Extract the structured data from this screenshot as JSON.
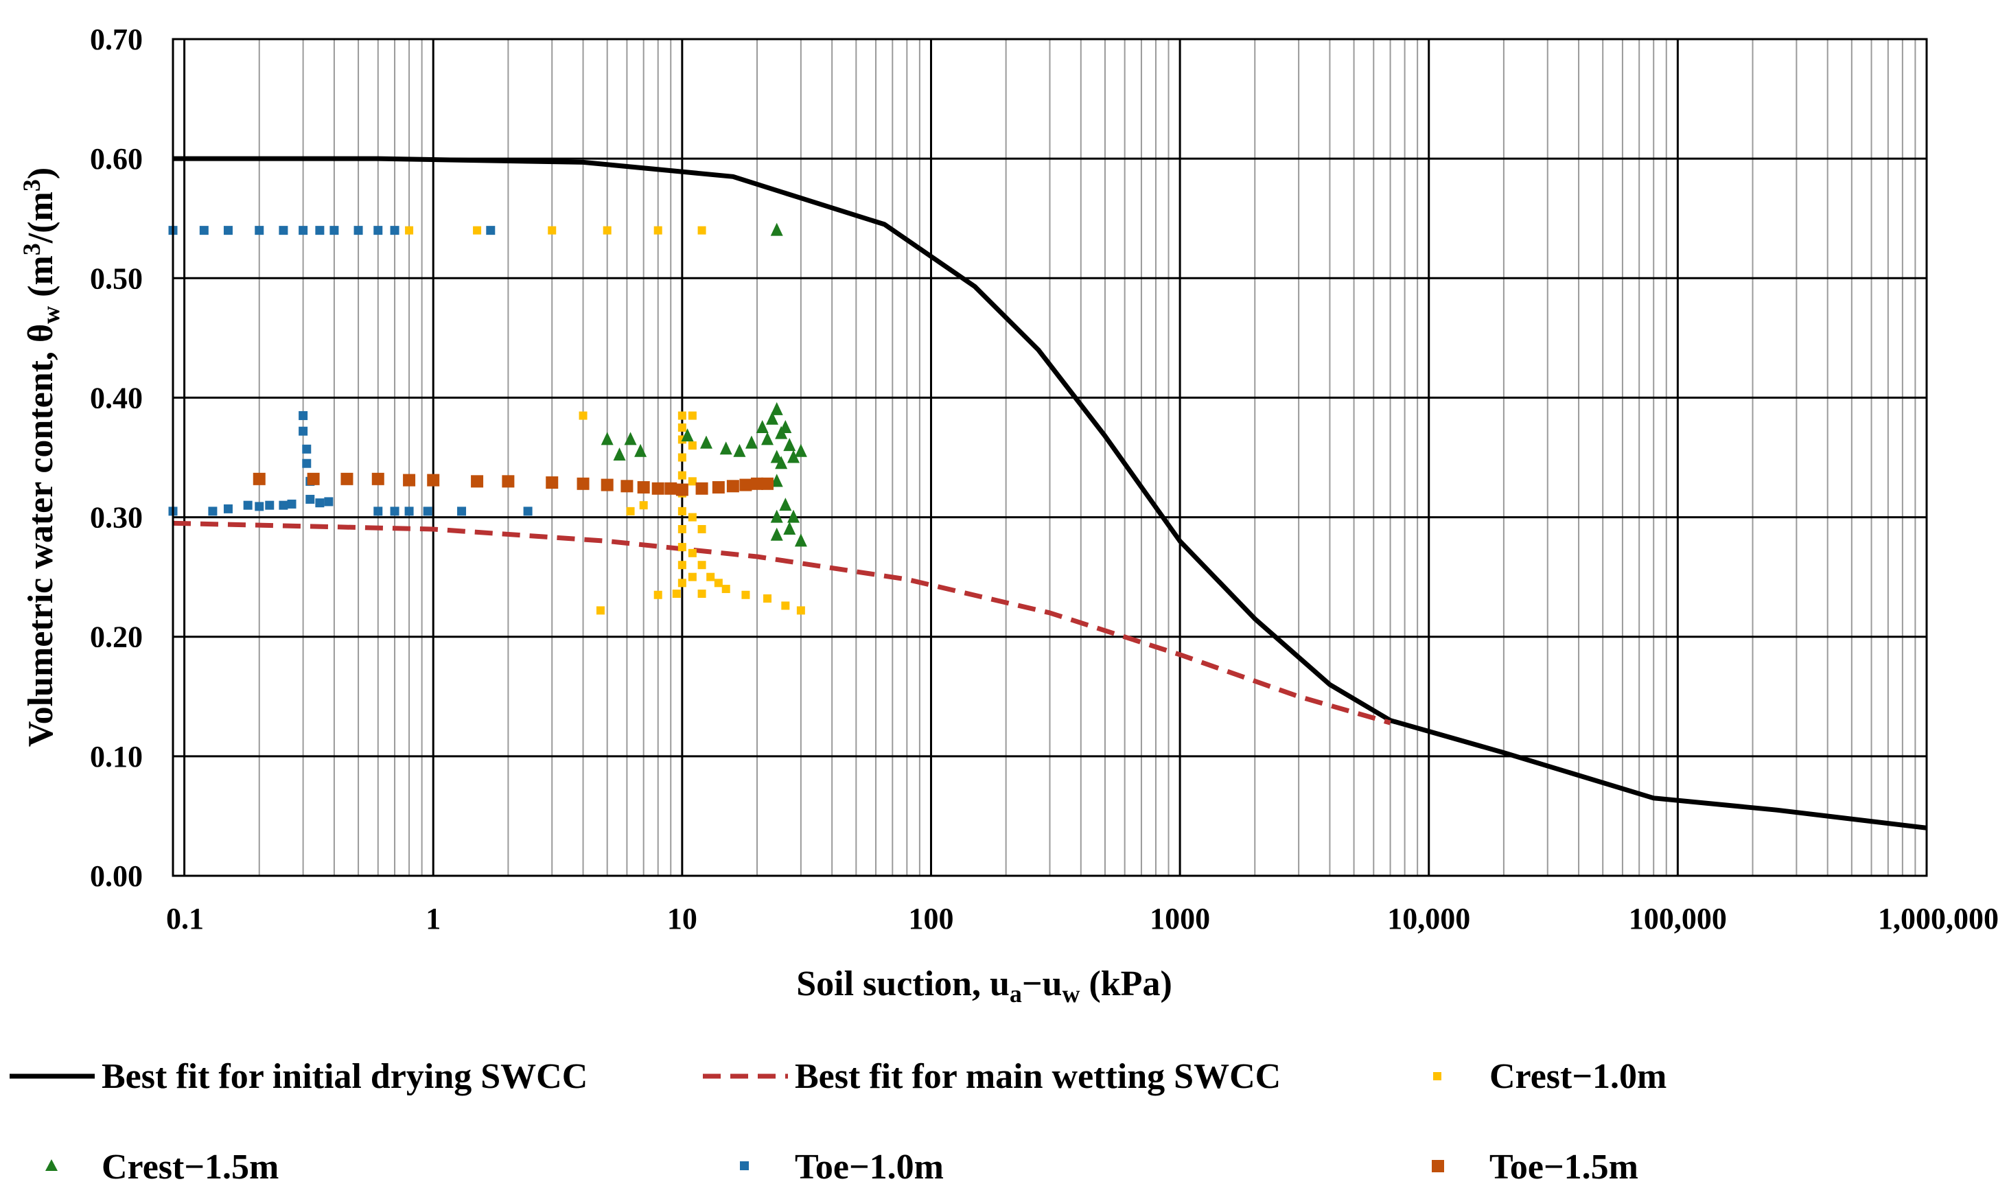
{
  "chart_data": {
    "type": "scatter",
    "title": "",
    "xlabel": "Soil suction, u",
    "xlabel_sub_a": "a",
    "xlabel_mid": "−u",
    "xlabel_sub_w": "w",
    "xlabel_units": " (kPa)",
    "ylabel_main": "Volumetric water content, θ",
    "ylabel_sub": "w",
    "ylabel_units_a": " (m",
    "ylabel_sup1": "3",
    "ylabel_units_b": "/(m",
    "ylabel_sup2": "3",
    "ylabel_units_c": ")",
    "xscale": "log",
    "xlim": [
      0.09,
      1000000
    ],
    "ylim": [
      0,
      0.7
    ],
    "grid": true,
    "legend_position": "bottom",
    "x_ticks": [
      {
        "value": 0.1,
        "label": "0.1"
      },
      {
        "value": 1,
        "label": "1"
      },
      {
        "value": 10,
        "label": "10"
      },
      {
        "value": 100,
        "label": "100"
      },
      {
        "value": 1000,
        "label": "1000"
      },
      {
        "value": 10000,
        "label": "10,000"
      },
      {
        "value": 100000,
        "label": "100,000"
      },
      {
        "value": 1000000,
        "label": "1,000,000"
      }
    ],
    "y_ticks": [
      {
        "value": 0.0,
        "label": "0.00"
      },
      {
        "value": 0.1,
        "label": "0.10"
      },
      {
        "value": 0.2,
        "label": "0.20"
      },
      {
        "value": 0.3,
        "label": "0.30"
      },
      {
        "value": 0.4,
        "label": "0.40"
      },
      {
        "value": 0.5,
        "label": "0.50"
      },
      {
        "value": 0.6,
        "label": "0.60"
      },
      {
        "value": 0.7,
        "label": "0.70"
      }
    ],
    "series": [
      {
        "name": "Best fit for initial drying SWCC",
        "kind": "line",
        "color": "#000000",
        "dash": "solid",
        "points": [
          [
            0.09,
            0.6
          ],
          [
            0.6,
            0.6
          ],
          [
            4,
            0.597
          ],
          [
            16,
            0.585
          ],
          [
            30,
            0.567
          ],
          [
            65,
            0.545
          ],
          [
            150,
            0.493
          ],
          [
            270,
            0.44
          ],
          [
            500,
            0.368
          ],
          [
            1000,
            0.28
          ],
          [
            2000,
            0.215
          ],
          [
            4000,
            0.16
          ],
          [
            7000,
            0.13
          ],
          [
            20000,
            0.103
          ],
          [
            80000,
            0.065
          ],
          [
            250000,
            0.055
          ],
          [
            1000000,
            0.04
          ]
        ]
      },
      {
        "name": "Best fit for main wetting SWCC",
        "kind": "line",
        "color": "#b83232",
        "dash": "dashed",
        "points": [
          [
            0.09,
            0.295
          ],
          [
            1,
            0.29
          ],
          [
            5,
            0.28
          ],
          [
            20,
            0.267
          ],
          [
            80,
            0.248
          ],
          [
            300,
            0.22
          ],
          [
            1000,
            0.185
          ],
          [
            3000,
            0.15
          ],
          [
            7000,
            0.128
          ]
        ]
      },
      {
        "name": "Crest−1.0m",
        "kind": "markers",
        "marker": "square",
        "color": "#ffc000",
        "points": [
          [
            0.8,
            0.54
          ],
          [
            1.5,
            0.54
          ],
          [
            3,
            0.54
          ],
          [
            5,
            0.54
          ],
          [
            8,
            0.54
          ],
          [
            12,
            0.54
          ],
          [
            4,
            0.385
          ],
          [
            4.7,
            0.222
          ],
          [
            6.2,
            0.305
          ],
          [
            7,
            0.31
          ],
          [
            8,
            0.235
          ],
          [
            10,
            0.385
          ],
          [
            10,
            0.375
          ],
          [
            10,
            0.365
          ],
          [
            10,
            0.35
          ],
          [
            10,
            0.335
          ],
          [
            10,
            0.32
          ],
          [
            10,
            0.305
          ],
          [
            10,
            0.29
          ],
          [
            10,
            0.275
          ],
          [
            10,
            0.26
          ],
          [
            10,
            0.245
          ],
          [
            11,
            0.385
          ],
          [
            11,
            0.36
          ],
          [
            11,
            0.33
          ],
          [
            11,
            0.3
          ],
          [
            11,
            0.27
          ],
          [
            11,
            0.25
          ],
          [
            12,
            0.29
          ],
          [
            12,
            0.26
          ],
          [
            13,
            0.25
          ],
          [
            15,
            0.24
          ],
          [
            18,
            0.235
          ],
          [
            22,
            0.232
          ],
          [
            26,
            0.226
          ],
          [
            30,
            0.222
          ],
          [
            9.5,
            0.236
          ],
          [
            12,
            0.236
          ],
          [
            14,
            0.245
          ]
        ]
      },
      {
        "name": "Crest−1.5m",
        "kind": "markers",
        "marker": "triangle",
        "color": "#1e7b1e",
        "points": [
          [
            5,
            0.365
          ],
          [
            5.6,
            0.352
          ],
          [
            6.2,
            0.365
          ],
          [
            6.8,
            0.355
          ],
          [
            10.5,
            0.368
          ],
          [
            12.5,
            0.362
          ],
          [
            15,
            0.357
          ],
          [
            17,
            0.355
          ],
          [
            19,
            0.362
          ],
          [
            21,
            0.375
          ],
          [
            22,
            0.365
          ],
          [
            23,
            0.382
          ],
          [
            24,
            0.54
          ],
          [
            24,
            0.39
          ],
          [
            24,
            0.35
          ],
          [
            24,
            0.33
          ],
          [
            24,
            0.3
          ],
          [
            24,
            0.285
          ],
          [
            25,
            0.37
          ],
          [
            25,
            0.345
          ],
          [
            26,
            0.375
          ],
          [
            26,
            0.31
          ],
          [
            27,
            0.36
          ],
          [
            27,
            0.29
          ],
          [
            28,
            0.35
          ],
          [
            28,
            0.3
          ],
          [
            30,
            0.355
          ],
          [
            30,
            0.28
          ]
        ]
      },
      {
        "name": "Toe−1.0m",
        "kind": "markers",
        "marker": "square",
        "color": "#1f6ea8",
        "points": [
          [
            0.09,
            0.54
          ],
          [
            0.12,
            0.54
          ],
          [
            0.15,
            0.54
          ],
          [
            0.2,
            0.54
          ],
          [
            0.25,
            0.54
          ],
          [
            0.3,
            0.54
          ],
          [
            0.35,
            0.54
          ],
          [
            0.4,
            0.54
          ],
          [
            0.5,
            0.54
          ],
          [
            0.6,
            0.54
          ],
          [
            0.7,
            0.54
          ],
          [
            1.7,
            0.54
          ],
          [
            0.09,
            0.305
          ],
          [
            0.13,
            0.305
          ],
          [
            0.15,
            0.307
          ],
          [
            0.18,
            0.31
          ],
          [
            0.2,
            0.309
          ],
          [
            0.22,
            0.31
          ],
          [
            0.25,
            0.31
          ],
          [
            0.27,
            0.311
          ],
          [
            0.3,
            0.385
          ],
          [
            0.3,
            0.372
          ],
          [
            0.31,
            0.357
          ],
          [
            0.31,
            0.345
          ],
          [
            0.32,
            0.33
          ],
          [
            0.32,
            0.315
          ],
          [
            0.35,
            0.312
          ],
          [
            0.38,
            0.313
          ],
          [
            0.6,
            0.305
          ],
          [
            0.7,
            0.305
          ],
          [
            0.8,
            0.305
          ],
          [
            0.95,
            0.305
          ],
          [
            1.3,
            0.305
          ],
          [
            2.4,
            0.305
          ]
        ]
      },
      {
        "name": "Toe−1.5m",
        "kind": "markers",
        "marker": "square",
        "color": "#c0500a",
        "points": [
          [
            0.2,
            0.332
          ],
          [
            0.33,
            0.332
          ],
          [
            0.45,
            0.332
          ],
          [
            0.6,
            0.332
          ],
          [
            0.8,
            0.331
          ],
          [
            1,
            0.331
          ],
          [
            1.5,
            0.33
          ],
          [
            2,
            0.33
          ],
          [
            3,
            0.329
          ],
          [
            4,
            0.328
          ],
          [
            5,
            0.327
          ],
          [
            6,
            0.326
          ],
          [
            7,
            0.325
          ],
          [
            8,
            0.324
          ],
          [
            9,
            0.324
          ],
          [
            10,
            0.323
          ],
          [
            12,
            0.324
          ],
          [
            14,
            0.325
          ],
          [
            16,
            0.326
          ],
          [
            18,
            0.327
          ],
          [
            20,
            0.328
          ],
          [
            22,
            0.328
          ]
        ]
      }
    ]
  }
}
